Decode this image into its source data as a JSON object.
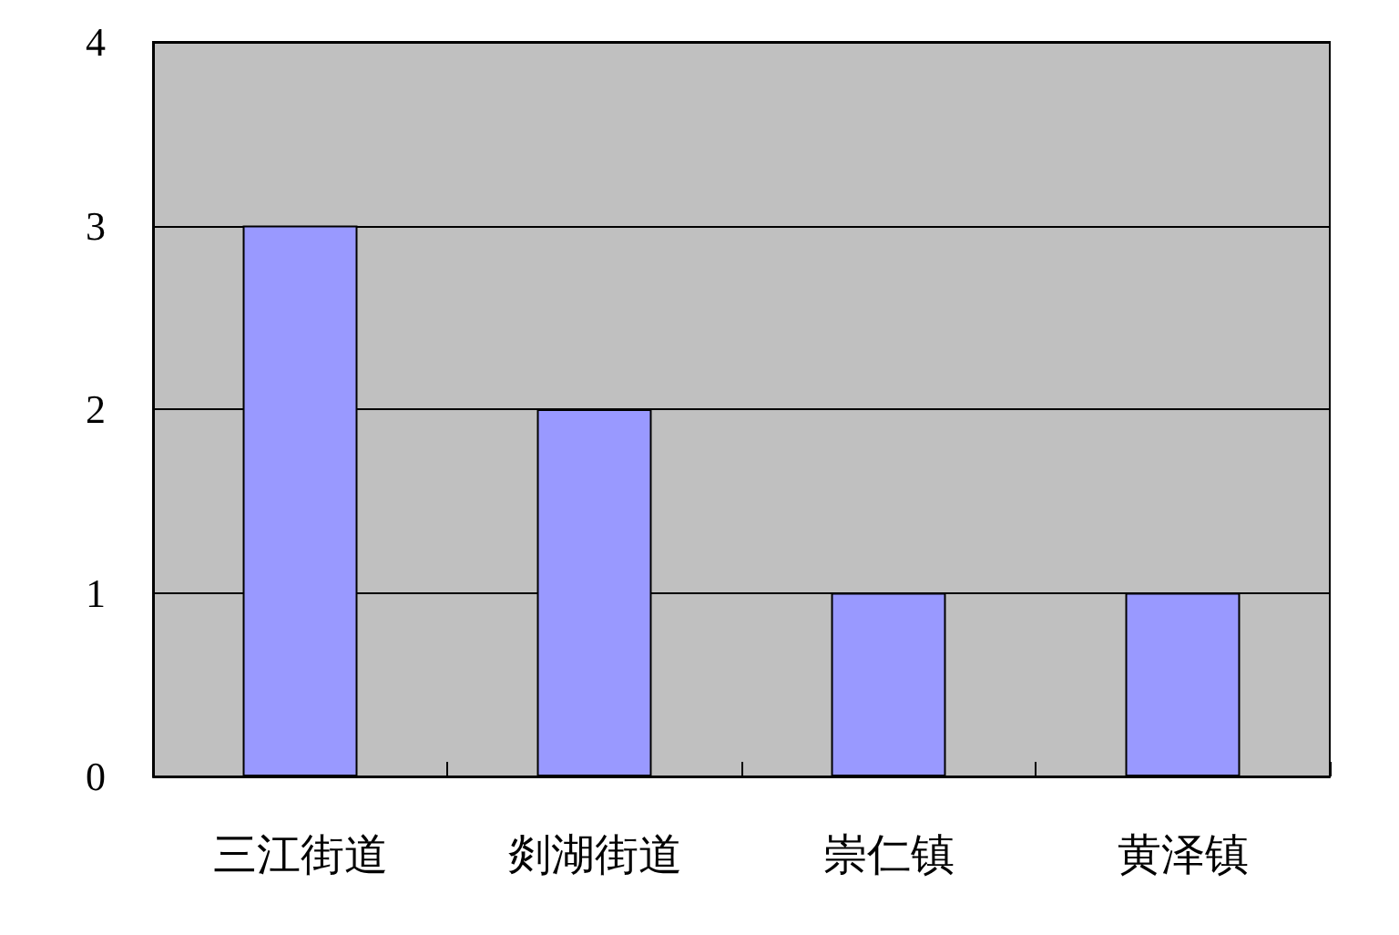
{
  "chart_data": {
    "type": "bar",
    "categories": [
      "三江街道",
      "剡湖街道",
      "崇仁镇",
      "黄泽镇"
    ],
    "values": [
      3,
      2,
      1,
      1
    ],
    "color": "#9999ff",
    "ylim": [
      0,
      4
    ],
    "yticks": [
      0,
      1,
      2,
      3,
      4
    ],
    "grid": "y"
  }
}
